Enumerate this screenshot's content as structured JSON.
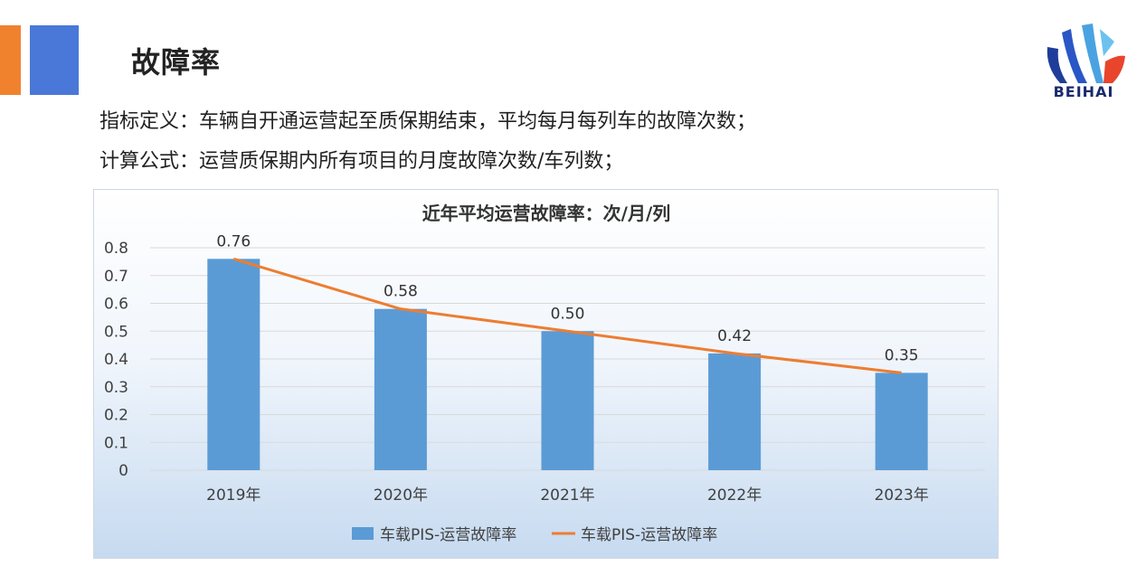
{
  "header": {
    "title": "故障率",
    "definition": "指标定义：车辆自开通运营起至质保期结束，平均每月每列车的故障次数；",
    "formula": "计算公式：运营质保期内所有项目的月度故障次数/车列数；"
  },
  "logo": {
    "text": "BEIHAI",
    "icon": "beihai-logo-icon"
  },
  "colors": {
    "bar": "#5b9bd5",
    "line": "#ed7d31",
    "accent_orange": "#f0822e",
    "accent_blue": "#4a78d8"
  },
  "chart_data": {
    "type": "bar",
    "title": "近年平均运营故障率：次/月/列",
    "categories": [
      "2019年",
      "2020年",
      "2021年",
      "2022年",
      "2023年"
    ],
    "series": [
      {
        "name": "车载PIS-运营故障率",
        "type": "bar",
        "values": [
          0.76,
          0.58,
          0.5,
          0.42,
          0.35
        ]
      },
      {
        "name": "车载PIS-运营故障率",
        "type": "line",
        "values": [
          0.76,
          0.58,
          0.5,
          0.42,
          0.35
        ]
      }
    ],
    "data_labels": [
      "0.76",
      "0.58",
      "0.50",
      "0.42",
      "0.35"
    ],
    "y_ticks": [
      "0",
      "0.1",
      "0.2",
      "0.3",
      "0.4",
      "0.5",
      "0.6",
      "0.7",
      "0.8"
    ],
    "ylim": [
      0,
      0.8
    ],
    "grid": true,
    "legend_position": "bottom"
  }
}
